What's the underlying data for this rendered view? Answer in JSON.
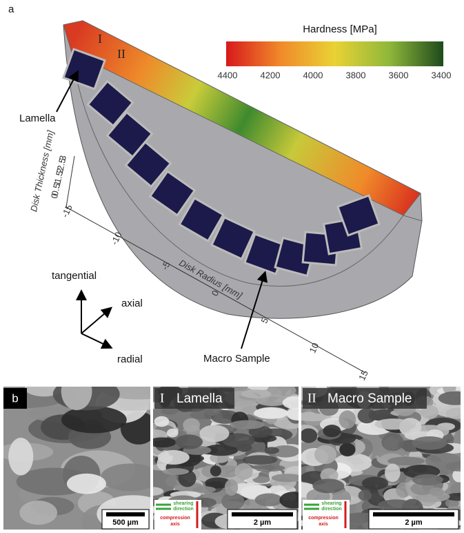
{
  "panel_a": {
    "label": "a",
    "strip_labels": [
      "I",
      "II"
    ],
    "colorbar": {
      "title": "Hardness [MPa]",
      "ticks": [
        4400,
        4200,
        4000,
        3800,
        3600,
        3400
      ]
    },
    "lamella_label": "Lamella",
    "macro_label": "Macro Sample",
    "thickness_axis": {
      "title": "Disk Thickness [mm]",
      "ticks": [
        3,
        2.5,
        2,
        1.5,
        1,
        0.5,
        0
      ]
    },
    "radius_axis": {
      "title": "Disk Radius [mm]",
      "ticks": [
        -15,
        -10,
        -5,
        0,
        5,
        10,
        15
      ]
    },
    "directions": {
      "tangential": "tangential",
      "axial": "axial",
      "radial": "radial"
    }
  },
  "panel_b": {
    "label": "b",
    "images": [
      {
        "scale_bar": "500 µm"
      },
      {
        "numeral": "I",
        "title": "Lamella",
        "scale_bar": "2 µm",
        "legend": {
          "shear": [
            "shearing",
            "direction"
          ],
          "compression": [
            "compression",
            "axis"
          ]
        }
      },
      {
        "numeral": "II",
        "title": "Macro Sample",
        "scale_bar": "2 µm",
        "legend": {
          "shear": [
            "shearing",
            "direction"
          ],
          "compression": [
            "compression",
            "axis"
          ]
        }
      }
    ]
  }
}
